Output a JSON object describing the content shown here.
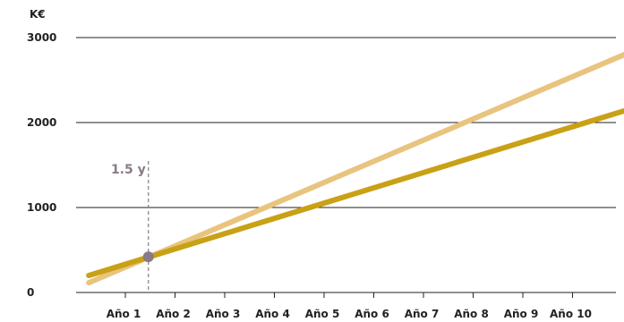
{
  "chart_data": {
    "type": "line",
    "unit_label": "K€",
    "categories": [
      "Año 1",
      "Año 2",
      "Año 3",
      "Año 4",
      "Año 5",
      "Año 6",
      "Año 7",
      "Año 8",
      "Año 9",
      "Año 10"
    ],
    "x_range": [
      0,
      11
    ],
    "y_ticks": [
      "0",
      "1000",
      "2000",
      "3000"
    ],
    "ylim": [
      0,
      3000
    ],
    "grid": true,
    "series": [
      {
        "color": "#e8c47e",
        "points": [
          [
            0.3,
            115
          ],
          [
            11.2,
            2830
          ]
        ]
      },
      {
        "color": "#c9a116",
        "points": [
          [
            0.3,
            200
          ],
          [
            11.2,
            2160
          ]
        ]
      }
    ],
    "annotation": {
      "label": "1.5 y",
      "x": 1.5,
      "y": 420,
      "color": "#8a7a88"
    },
    "colors": {
      "grid": "#222222",
      "axis": "#222222",
      "text": "#222222"
    }
  }
}
